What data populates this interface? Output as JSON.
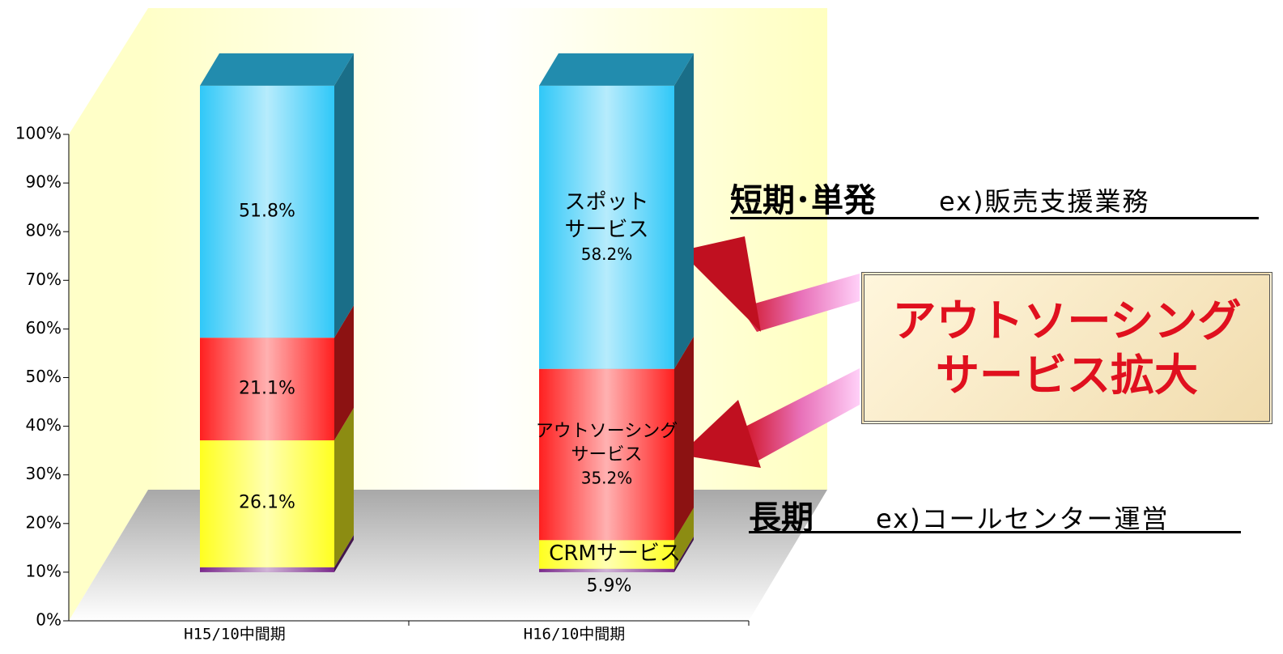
{
  "chart_data": {
    "type": "bar3d_stacked",
    "categories": [
      "H15/10中間期",
      "H16/10中間期"
    ],
    "series": [
      {
        "color": "#7a2a8c",
        "values": [
          1.0,
          0.7
        ]
      },
      {
        "name": "CRMサービス",
        "color": "#ffff20",
        "values": [
          26.1,
          5.9
        ],
        "value_labels": [
          "26.1%",
          "5.9%"
        ]
      },
      {
        "name": "アウトソーシング\nサービス",
        "color": "#ff2020",
        "values": [
          21.1,
          35.2
        ],
        "value_labels": [
          "21.1%",
          "35.2%"
        ]
      },
      {
        "name": "スポット\nサービス",
        "color": "#30c8f8",
        "values": [
          51.8,
          58.2
        ],
        "value_labels": [
          "51.8%",
          "58.2%"
        ]
      }
    ],
    "ylim": [
      0,
      100
    ],
    "yticks": [
      {
        "value": 0,
        "label": "0%"
      },
      {
        "value": 10,
        "label": "10%"
      },
      {
        "value": 20,
        "label": "20%"
      },
      {
        "value": 30,
        "label": "30%"
      },
      {
        "value": 40,
        "label": "40%"
      },
      {
        "value": 50,
        "label": "50%"
      },
      {
        "value": 60,
        "label": "60%"
      },
      {
        "value": 70,
        "label": "70%"
      },
      {
        "value": 80,
        "label": "80%"
      },
      {
        "value": 90,
        "label": "90%"
      },
      {
        "value": 100,
        "label": "100%"
      }
    ],
    "annotations": {
      "short_term": "短期･単発",
      "short_example": "ex)販売支援業務",
      "callout": "アウトソーシング\nサービス拡大",
      "long_term": "長期",
      "long_example": "ex)コールセンター運営"
    }
  }
}
